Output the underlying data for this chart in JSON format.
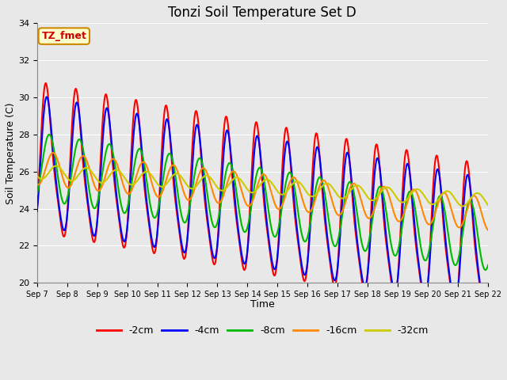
{
  "title": "Tonzi Soil Temperature Set D",
  "xlabel": "Time",
  "ylabel": "Soil Temperature (C)",
  "ylim": [
    20,
    34
  ],
  "xlim": [
    0,
    15
  ],
  "annotation": "TZ_fmet",
  "annotation_bbox": {
    "boxstyle": "round,pad=0.3",
    "facecolor": "#ffffcc",
    "edgecolor": "#cc8800",
    "linewidth": 1.5
  },
  "annotation_color": "#cc0000",
  "annotation_fontsize": 9,
  "annotation_fontweight": "bold",
  "figure_facecolor": "#e8e8e8",
  "axes_facecolor": "#e8e8e8",
  "grid_color": "#ffffff",
  "line_colors": [
    "#ff0000",
    "#0000ff",
    "#00bb00",
    "#ff8800",
    "#cccc00"
  ],
  "line_labels": [
    "-2cm",
    "-4cm",
    "-8cm",
    "-16cm",
    "-32cm"
  ],
  "line_width": 1.5,
  "tick_labels": [
    "Sep 7",
    "Sep 8",
    "Sep 9",
    "Sep 10",
    "Sep 11",
    "Sep 12",
    "Sep 13",
    "Sep 14",
    "Sep 15",
    "Sep 16",
    "Sep 17",
    "Sep 18",
    "Sep 19",
    "Sep 20",
    "Sep 21",
    "Sep 22"
  ],
  "yticks": [
    20,
    22,
    24,
    26,
    28,
    30,
    32,
    34
  ],
  "title_fontsize": 12
}
